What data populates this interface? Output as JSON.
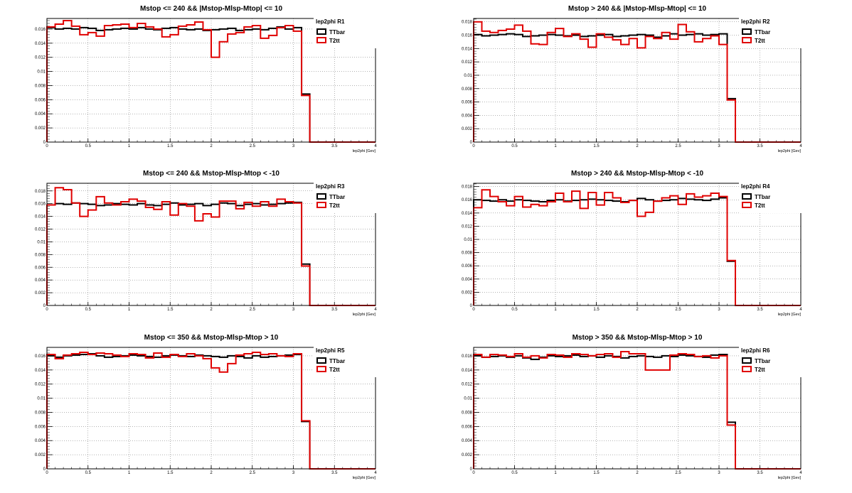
{
  "colors": {
    "TTbar": "#000000",
    "T2tt": "#e00000",
    "grid": "#666666"
  },
  "chart_data": [
    {
      "type": "line",
      "panel_label": "lep2phi  R1",
      "title": "Mstop <= 240 && |Mstop-Mlsp-Mtop| <= 10",
      "xlabel": "lep2phi [Gev]",
      "xlim": [
        0,
        4
      ],
      "ylim": [
        0,
        0.0175
      ],
      "xticks": [
        "0",
        "0.5",
        "1",
        "1.5",
        "2",
        "2.5",
        "3",
        "3.5",
        "4"
      ],
      "yticks": [
        "0",
        "0.002",
        "0.004",
        "0.006",
        "0.008",
        "0.01",
        "0.012",
        "0.014",
        "0.016"
      ],
      "legend": [
        "TTbar",
        "T2tt"
      ],
      "grid": true,
      "legend_position": "top-right",
      "histogram": true,
      "x_edges": [
        0,
        0.1,
        0.2,
        0.3,
        0.4,
        0.5,
        0.6,
        0.7,
        0.8,
        0.9,
        1.0,
        1.1,
        1.2,
        1.3,
        1.4,
        1.5,
        1.6,
        1.7,
        1.8,
        1.9,
        2.0,
        2.1,
        2.2,
        2.3,
        2.4,
        2.5,
        2.6,
        2.7,
        2.8,
        2.9,
        3.0,
        3.1,
        3.2,
        3.3,
        3.4,
        3.5,
        3.6,
        3.7,
        3.8,
        3.9,
        4.0
      ],
      "series": [
        {
          "name": "TTbar",
          "values": [
            0.0162,
            0.016,
            0.0161,
            0.016,
            0.0162,
            0.0161,
            0.0158,
            0.0159,
            0.016,
            0.0161,
            0.016,
            0.0162,
            0.016,
            0.0159,
            0.0161,
            0.0162,
            0.016,
            0.0159,
            0.016,
            0.0158,
            0.0159,
            0.016,
            0.0161,
            0.0158,
            0.0159,
            0.016,
            0.0159,
            0.0161,
            0.0163,
            0.016,
            0.0162,
            0.0068,
            0,
            0,
            0,
            0,
            0,
            0,
            0,
            0
          ]
        },
        {
          "name": "T2tt",
          "values": [
            0.0163,
            0.0167,
            0.0172,
            0.0164,
            0.0152,
            0.0155,
            0.015,
            0.0165,
            0.0166,
            0.0167,
            0.0162,
            0.0168,
            0.0163,
            0.016,
            0.0149,
            0.0152,
            0.0164,
            0.0166,
            0.017,
            0.0159,
            0.012,
            0.0142,
            0.0153,
            0.0155,
            0.0163,
            0.0165,
            0.0147,
            0.0151,
            0.0162,
            0.0165,
            0.0157,
            0.0066,
            0,
            0,
            0,
            0,
            0,
            0,
            0,
            0
          ]
        }
      ]
    },
    {
      "type": "line",
      "panel_label": "lep2phi  R2",
      "title": "Mstop > 240 && |Mstop-Mlsp-Mtop| <= 10",
      "xlabel": "lep2phi [Gev]",
      "xlim": [
        0,
        4
      ],
      "ylim": [
        0,
        0.0185
      ],
      "xticks": [
        "0",
        "0.5",
        "1",
        "1.5",
        "2",
        "2.5",
        "3",
        "3.5",
        "4"
      ],
      "yticks": [
        "0",
        "0.002",
        "0.004",
        "0.006",
        "0.008",
        "0.01",
        "0.012",
        "0.014",
        "0.016",
        "0.018"
      ],
      "legend": [
        "TTbar",
        "T2tt"
      ],
      "grid": true,
      "legend_position": "top-right",
      "histogram": true,
      "x_edges": [
        0,
        0.1,
        0.2,
        0.3,
        0.4,
        0.5,
        0.6,
        0.7,
        0.8,
        0.9,
        1.0,
        1.1,
        1.2,
        1.3,
        1.4,
        1.5,
        1.6,
        1.7,
        1.8,
        1.9,
        2.0,
        2.1,
        2.2,
        2.3,
        2.4,
        2.5,
        2.6,
        2.7,
        2.8,
        2.9,
        3.0,
        3.1,
        3.2,
        3.3,
        3.4,
        3.5,
        3.6,
        3.7,
        3.8,
        3.9,
        4.0
      ],
      "series": [
        {
          "name": "TTbar",
          "values": [
            0.0161,
            0.0159,
            0.016,
            0.0161,
            0.0162,
            0.0161,
            0.0158,
            0.0159,
            0.016,
            0.0161,
            0.016,
            0.0159,
            0.016,
            0.0158,
            0.0159,
            0.016,
            0.0161,
            0.0158,
            0.0159,
            0.016,
            0.0161,
            0.016,
            0.0157,
            0.0159,
            0.0162,
            0.016,
            0.0161,
            0.0162,
            0.016,
            0.0161,
            0.0162,
            0.0065,
            0,
            0,
            0,
            0,
            0,
            0,
            0,
            0
          ]
        },
        {
          "name": "T2tt",
          "values": [
            0.018,
            0.0166,
            0.0164,
            0.0167,
            0.0169,
            0.0175,
            0.0166,
            0.0147,
            0.0146,
            0.0164,
            0.017,
            0.0158,
            0.0162,
            0.0154,
            0.0142,
            0.0162,
            0.0157,
            0.0153,
            0.0146,
            0.0155,
            0.0141,
            0.0158,
            0.0155,
            0.0164,
            0.0154,
            0.0176,
            0.0165,
            0.015,
            0.0155,
            0.0159,
            0.0146,
            0.0063,
            0,
            0,
            0,
            0,
            0,
            0,
            0,
            0
          ]
        }
      ]
    },
    {
      "type": "line",
      "panel_label": "lep2phi  R3",
      "title": "Mstop <= 240 && Mstop-Mlsp-Mtop < -10",
      "xlabel": "lep2phi [Gev]",
      "xlim": [
        0,
        4
      ],
      "ylim": [
        0,
        0.0192
      ],
      "xticks": [
        "0",
        "0.5",
        "1",
        "1.5",
        "2",
        "2.5",
        "3",
        "3.5",
        "4"
      ],
      "yticks": [
        "0",
        "0.002",
        "0.004",
        "0.006",
        "0.008",
        "0.01",
        "0.012",
        "0.014",
        "0.016",
        "0.018"
      ],
      "legend": [
        "TTbar",
        "T2tt"
      ],
      "grid": true,
      "legend_position": "top-right",
      "histogram": true,
      "x_edges": [
        0,
        0.1,
        0.2,
        0.3,
        0.4,
        0.5,
        0.6,
        0.7,
        0.8,
        0.9,
        1.0,
        1.1,
        1.2,
        1.3,
        1.4,
        1.5,
        1.6,
        1.7,
        1.8,
        1.9,
        2.0,
        2.1,
        2.2,
        2.3,
        2.4,
        2.5,
        2.6,
        2.7,
        2.8,
        2.9,
        3.0,
        3.1,
        3.2,
        3.3,
        3.4,
        3.5,
        3.6,
        3.7,
        3.8,
        3.9,
        4.0
      ],
      "series": [
        {
          "name": "TTbar",
          "values": [
            0.0158,
            0.016,
            0.0159,
            0.0161,
            0.016,
            0.0159,
            0.0157,
            0.0158,
            0.016,
            0.0159,
            0.0158,
            0.016,
            0.0158,
            0.0157,
            0.0159,
            0.0161,
            0.0158,
            0.0159,
            0.016,
            0.0157,
            0.0159,
            0.0161,
            0.016,
            0.0157,
            0.0159,
            0.016,
            0.0158,
            0.0159,
            0.016,
            0.0161,
            0.0162,
            0.0065,
            0,
            0,
            0,
            0,
            0,
            0,
            0,
            0
          ]
        },
        {
          "name": "T2tt",
          "values": [
            0.0158,
            0.0185,
            0.0182,
            0.0161,
            0.014,
            0.015,
            0.0171,
            0.0161,
            0.0158,
            0.0163,
            0.0167,
            0.0164,
            0.0154,
            0.0151,
            0.0163,
            0.0142,
            0.016,
            0.0156,
            0.0133,
            0.0144,
            0.0139,
            0.0164,
            0.0164,
            0.0152,
            0.0162,
            0.0156,
            0.0163,
            0.0156,
            0.0167,
            0.0163,
            0.0161,
            0.0062,
            0,
            0,
            0,
            0,
            0,
            0,
            0,
            0
          ]
        }
      ]
    },
    {
      "type": "line",
      "panel_label": "lep2phi  R4",
      "title": "Mstop > 240 && Mstop-Mlsp-Mtop < -10",
      "xlabel": "lep2phi [Gev]",
      "xlim": [
        0,
        4
      ],
      "ylim": [
        0,
        0.0185
      ],
      "xticks": [
        "0",
        "0.5",
        "1",
        "1.5",
        "2",
        "2.5",
        "3",
        "3.5",
        "4"
      ],
      "yticks": [
        "0",
        "0.002",
        "0.004",
        "0.006",
        "0.008",
        "0.01",
        "0.012",
        "0.014",
        "0.016",
        "0.018"
      ],
      "legend": [
        "TTbar",
        "T2tt"
      ],
      "grid": true,
      "legend_position": "top-right",
      "histogram": true,
      "x_edges": [
        0,
        0.1,
        0.2,
        0.3,
        0.4,
        0.5,
        0.6,
        0.7,
        0.8,
        0.9,
        1.0,
        1.1,
        1.2,
        1.3,
        1.4,
        1.5,
        1.6,
        1.7,
        1.8,
        1.9,
        2.0,
        2.1,
        2.2,
        2.3,
        2.4,
        2.5,
        2.6,
        2.7,
        2.8,
        2.9,
        3.0,
        3.1,
        3.2,
        3.3,
        3.4,
        3.5,
        3.6,
        3.7,
        3.8,
        3.9,
        4.0
      ],
      "series": [
        {
          "name": "TTbar",
          "values": [
            0.016,
            0.0159,
            0.0158,
            0.016,
            0.0158,
            0.016,
            0.0159,
            0.0158,
            0.0157,
            0.0159,
            0.016,
            0.0158,
            0.0159,
            0.016,
            0.0161,
            0.016,
            0.0159,
            0.0158,
            0.0157,
            0.0159,
            0.0162,
            0.016,
            0.0158,
            0.0159,
            0.016,
            0.0162,
            0.0161,
            0.016,
            0.0159,
            0.0161,
            0.0163,
            0.0067,
            0,
            0,
            0,
            0,
            0,
            0,
            0,
            0
          ]
        },
        {
          "name": "T2tt",
          "values": [
            0.0148,
            0.0175,
            0.0165,
            0.0157,
            0.0151,
            0.0165,
            0.0149,
            0.0153,
            0.0151,
            0.0157,
            0.017,
            0.0157,
            0.0173,
            0.0147,
            0.0171,
            0.0152,
            0.0171,
            0.0163,
            0.0156,
            0.0159,
            0.0135,
            0.0141,
            0.0158,
            0.0163,
            0.0166,
            0.0153,
            0.0169,
            0.0164,
            0.0166,
            0.017,
            0.0165,
            0.0068,
            0,
            0,
            0,
            0,
            0,
            0,
            0,
            0
          ]
        }
      ]
    },
    {
      "type": "line",
      "panel_label": "lep2phi  R5",
      "title": "Mstop <= 350 && Mstop-Mlsp-Mtop > 10",
      "xlabel": "lep2phi [Gev]",
      "xlim": [
        0,
        4
      ],
      "ylim": [
        0,
        0.0172
      ],
      "xticks": [
        "0",
        "0.5",
        "1",
        "1.5",
        "2",
        "2.5",
        "3",
        "3.5",
        "4"
      ],
      "yticks": [
        "0",
        "0.002",
        "0.004",
        "0.006",
        "0.008",
        "0.01",
        "0.012",
        "0.014",
        "0.016"
      ],
      "legend": [
        "TTbar",
        "T2tt"
      ],
      "grid": true,
      "legend_position": "top-right",
      "histogram": true,
      "x_edges": [
        0,
        0.1,
        0.2,
        0.3,
        0.4,
        0.5,
        0.6,
        0.7,
        0.8,
        0.9,
        1.0,
        1.1,
        1.2,
        1.3,
        1.4,
        1.5,
        1.6,
        1.7,
        1.8,
        1.9,
        2.0,
        2.1,
        2.2,
        2.3,
        2.4,
        2.5,
        2.6,
        2.7,
        2.8,
        2.9,
        3.0,
        3.1,
        3.2,
        3.3,
        3.4,
        3.5,
        3.6,
        3.7,
        3.8,
        3.9,
        4.0
      ],
      "series": [
        {
          "name": "TTbar",
          "values": [
            0.016,
            0.0158,
            0.016,
            0.0161,
            0.0162,
            0.0163,
            0.016,
            0.0158,
            0.0159,
            0.016,
            0.0161,
            0.016,
            0.0159,
            0.0158,
            0.016,
            0.0161,
            0.016,
            0.0159,
            0.0161,
            0.016,
            0.0159,
            0.0158,
            0.016,
            0.0159,
            0.0157,
            0.016,
            0.0158,
            0.0159,
            0.016,
            0.0161,
            0.0162,
            0.0067,
            0,
            0,
            0,
            0,
            0,
            0,
            0,
            0
          ]
        },
        {
          "name": "T2tt",
          "values": [
            0.0162,
            0.0156,
            0.0161,
            0.0163,
            0.0165,
            0.0162,
            0.0164,
            0.0163,
            0.0161,
            0.0159,
            0.0163,
            0.0162,
            0.0157,
            0.0164,
            0.0158,
            0.0162,
            0.0159,
            0.0163,
            0.016,
            0.0156,
            0.0143,
            0.0137,
            0.0149,
            0.0161,
            0.0163,
            0.0165,
            0.0162,
            0.0163,
            0.016,
            0.0159,
            0.0163,
            0.0068,
            0,
            0,
            0,
            0,
            0,
            0,
            0,
            0
          ]
        }
      ]
    },
    {
      "type": "line",
      "panel_label": "lep2phi  R6",
      "title": "Mstop > 350 && Mstop-Mlsp-Mtop > 10",
      "xlabel": "lep2phi [Gev]",
      "xlim": [
        0,
        4
      ],
      "ylim": [
        0,
        0.0172
      ],
      "xticks": [
        "0",
        "0.5",
        "1",
        "1.5",
        "2",
        "2.5",
        "3",
        "3.5",
        "4"
      ],
      "yticks": [
        "0",
        "0.002",
        "0.004",
        "0.006",
        "0.008",
        "0.01",
        "0.012",
        "0.014",
        "0.016"
      ],
      "legend": [
        "TTbar",
        "T2tt"
      ],
      "grid": true,
      "legend_position": "top-right",
      "histogram": true,
      "x_edges": [
        0,
        0.1,
        0.2,
        0.3,
        0.4,
        0.5,
        0.6,
        0.7,
        0.8,
        0.9,
        1.0,
        1.1,
        1.2,
        1.3,
        1.4,
        1.5,
        1.6,
        1.7,
        1.8,
        1.9,
        2.0,
        2.1,
        2.2,
        2.3,
        2.4,
        2.5,
        2.6,
        2.7,
        2.8,
        2.9,
        3.0,
        3.1,
        3.2,
        3.3,
        3.4,
        3.5,
        3.6,
        3.7,
        3.8,
        3.9,
        4.0
      ],
      "series": [
        {
          "name": "TTbar",
          "values": [
            0.016,
            0.0158,
            0.0159,
            0.016,
            0.0158,
            0.016,
            0.0157,
            0.0155,
            0.0158,
            0.016,
            0.0159,
            0.016,
            0.0161,
            0.0159,
            0.016,
            0.0158,
            0.016,
            0.0159,
            0.0157,
            0.0159,
            0.016,
            0.0159,
            0.0158,
            0.016,
            0.0159,
            0.0161,
            0.016,
            0.0159,
            0.0158,
            0.0161,
            0.0162,
            0.0066,
            0,
            0,
            0,
            0,
            0,
            0,
            0,
            0
          ]
        },
        {
          "name": "T2tt",
          "values": [
            0.0162,
            0.0158,
            0.0162,
            0.0161,
            0.0159,
            0.0163,
            0.0158,
            0.016,
            0.0157,
            0.0162,
            0.0161,
            0.0158,
            0.0163,
            0.0162,
            0.016,
            0.0162,
            0.0163,
            0.0158,
            0.0166,
            0.0163,
            0.0163,
            0.014,
            0.014,
            0.014,
            0.0161,
            0.0163,
            0.0162,
            0.0159,
            0.016,
            0.0157,
            0.016,
            0.0062,
            0,
            0,
            0,
            0,
            0,
            0,
            0,
            0
          ]
        }
      ]
    }
  ]
}
